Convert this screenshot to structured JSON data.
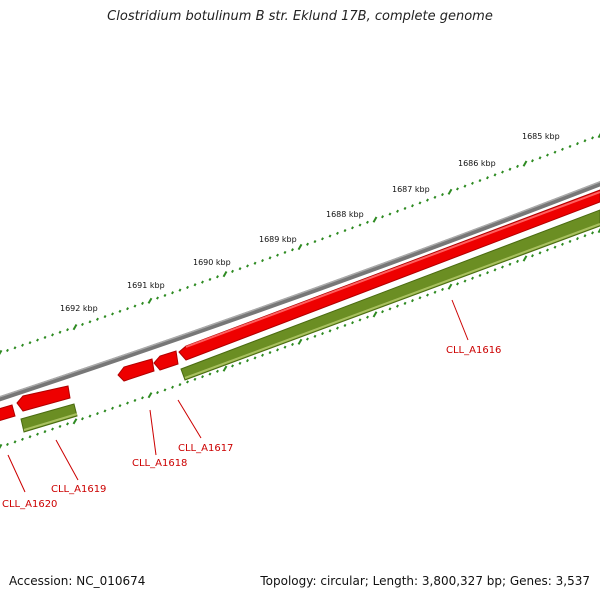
{
  "title": "Clostridium botulinum B str. Eklund 17B, complete genome",
  "footer": {
    "accession": "Accession: NC_010674",
    "stats": "Topology: circular; Length: 3,800,327 bp; Genes: 3,537"
  },
  "colors": {
    "backbone": "#808080",
    "forward_gene": "#ee0000",
    "reverse_gene": "#6b8e23",
    "tick": "#2e8b22",
    "label": "#cc0000"
  },
  "scale_labels": [
    "1685 kbp",
    "1686 kbp",
    "1687 kbp",
    "1688 kbp",
    "1689 kbp",
    "1690 kbp",
    "1691 kbp",
    "1692 kbp"
  ],
  "gene_labels": [
    "CLL_A1616",
    "CLL_A1617",
    "CLL_A1618",
    "CLL_A1619",
    "CLL_A1620"
  ]
}
